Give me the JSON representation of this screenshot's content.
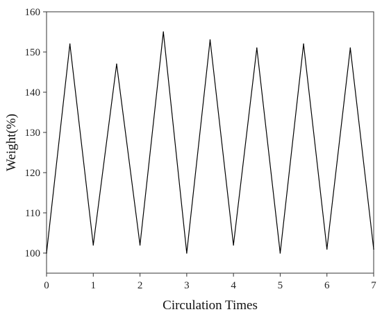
{
  "chart_data": {
    "type": "line",
    "title": "",
    "xlabel": "Circulation Times",
    "ylabel": "Weight(%)",
    "xlim": [
      0,
      7
    ],
    "ylim": [
      95,
      160
    ],
    "xticks": [
      0,
      1,
      2,
      3,
      4,
      5,
      6,
      7
    ],
    "yticks": [
      100,
      110,
      120,
      130,
      140,
      150,
      160
    ],
    "grid": false,
    "line_color": "#000000",
    "series": [
      {
        "x": [
          0,
          0.5,
          1,
          1.5,
          2,
          2.5,
          3,
          3.5,
          4,
          4.5,
          5,
          5.5,
          6,
          6.5,
          7
        ],
        "values": [
          100,
          152,
          102,
          147,
          102,
          155,
          100,
          153,
          102,
          151,
          100,
          152,
          101,
          151,
          101
        ]
      }
    ]
  }
}
